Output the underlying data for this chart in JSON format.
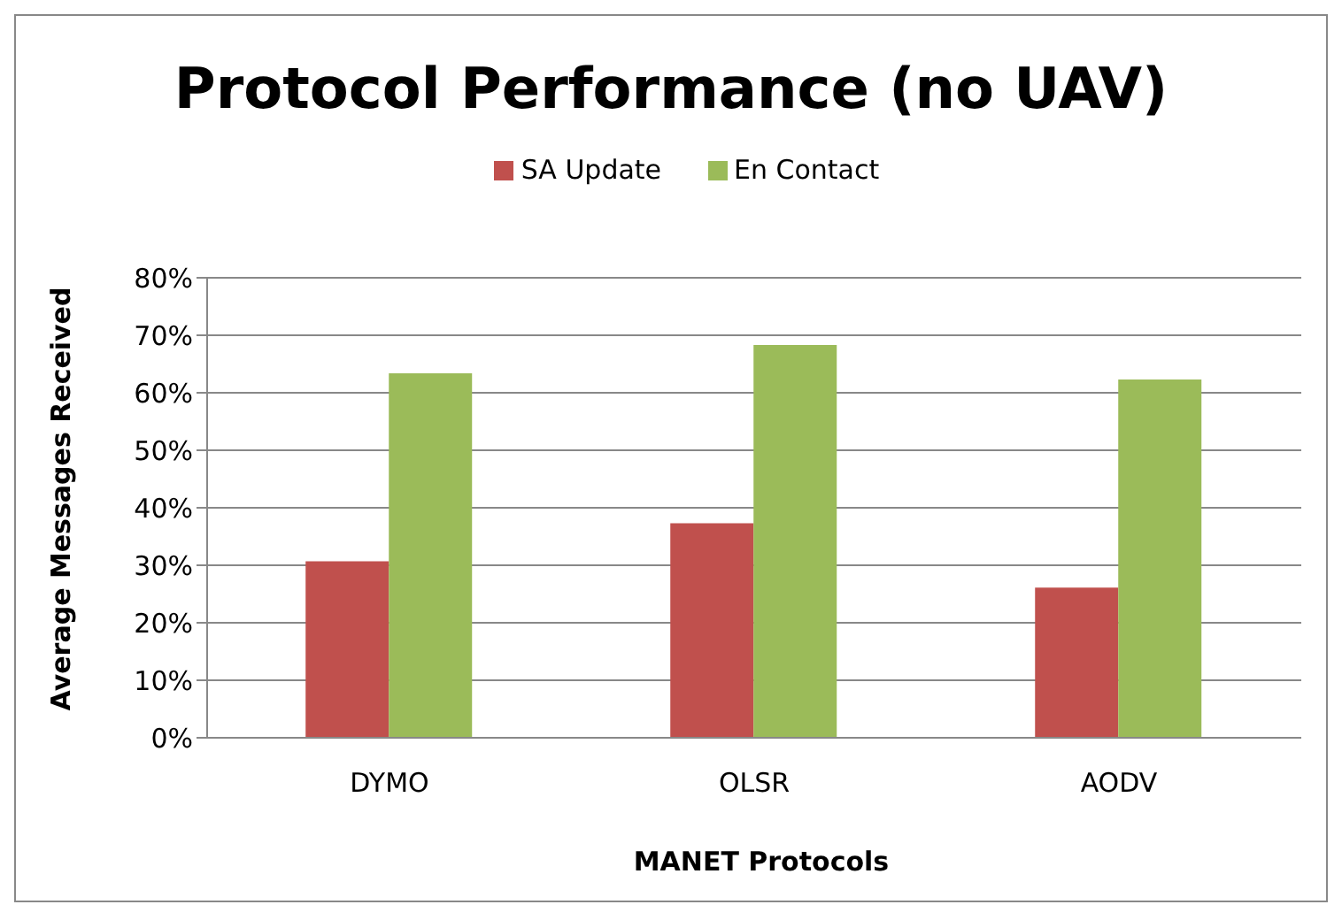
{
  "chart_data": {
    "type": "bar",
    "title": "Protocol Performance (no UAV)",
    "xlabel": "MANET Protocols",
    "ylabel": "Average Messages Received",
    "categories": [
      "DYMO",
      "OLSR",
      "AODV"
    ],
    "series": [
      {
        "name": "SA Update",
        "color": "#c0504d",
        "values": [
          30.7,
          37.3,
          26.1
        ]
      },
      {
        "name": "En Contact",
        "color": "#9bbb59",
        "values": [
          63.4,
          68.3,
          62.3
        ]
      }
    ],
    "ylim": [
      0,
      80
    ],
    "yticks": [
      {
        "value": 0,
        "label": "0%"
      },
      {
        "value": 10,
        "label": "10%"
      },
      {
        "value": 20,
        "label": "20%"
      },
      {
        "value": 30,
        "label": "30%"
      },
      {
        "value": 40,
        "label": "40%"
      },
      {
        "value": 50,
        "label": "50%"
      },
      {
        "value": 60,
        "label": "60%"
      },
      {
        "value": 70,
        "label": "70%"
      },
      {
        "value": 80,
        "label": "80%"
      }
    ],
    "grid": "y",
    "legend": "top"
  }
}
